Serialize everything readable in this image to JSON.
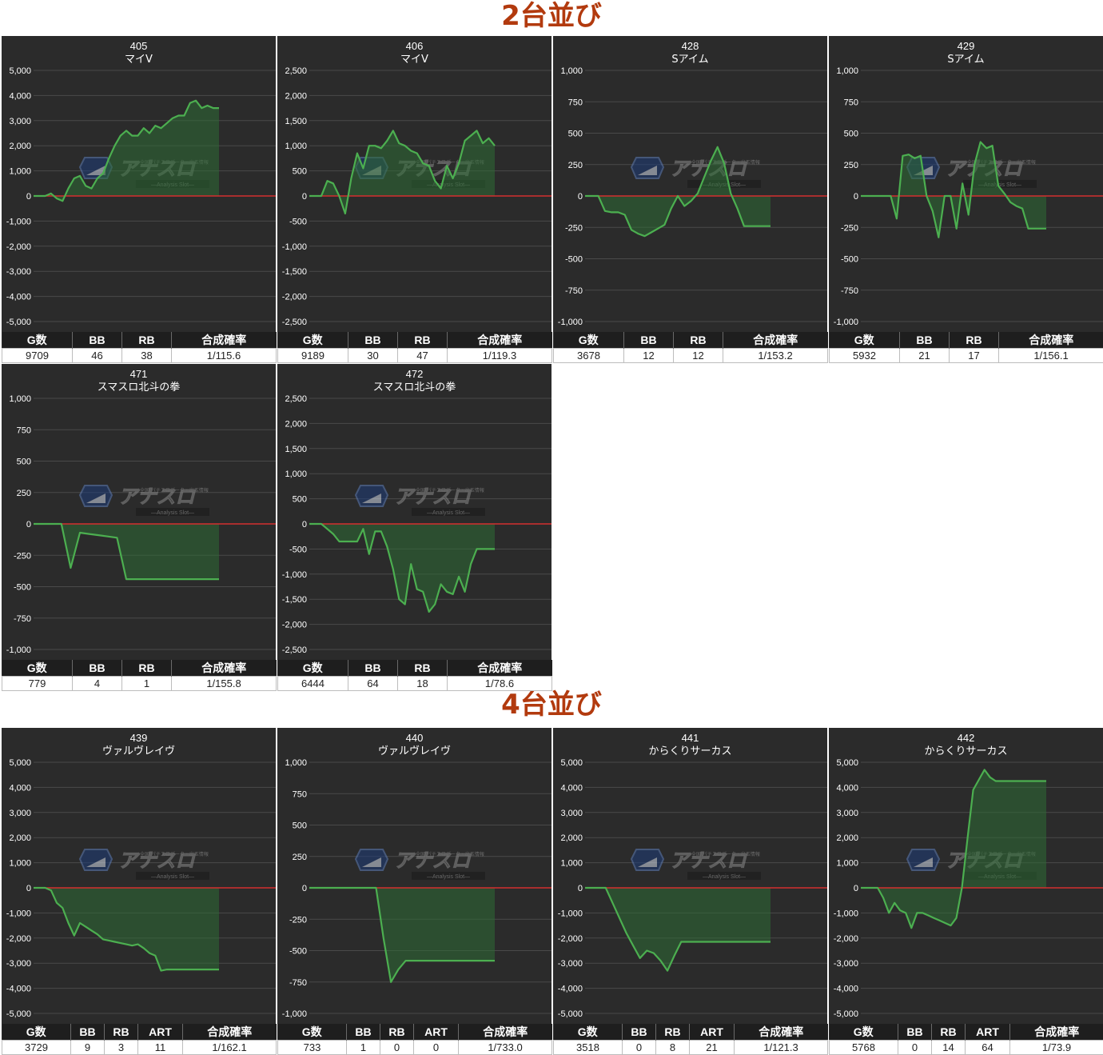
{
  "sections": [
    {
      "title": "2台並び",
      "machines": [
        0,
        1,
        2,
        3,
        4,
        5
      ]
    },
    {
      "title": "4台並び",
      "machines": [
        6,
        7,
        8,
        9
      ]
    }
  ],
  "watermark": {
    "brand": "アナスロ",
    "tagline": "—Analysis Slot—",
    "top_text": "全国 パチスロデータ・出玉情報"
  },
  "colors": {
    "panel_bg": "#2b2b2b",
    "line": "#4caf50",
    "fill": "#2e6b34",
    "zero_line": "#d32f2f",
    "grid": "#4a4a4a",
    "title": "#b23a0e"
  },
  "machines": [
    {
      "number": "405",
      "name": "マイV",
      "headers": [
        "G数",
        "BB",
        "RB",
        "合成確率"
      ],
      "values": [
        "9709",
        "46",
        "38",
        "1/115.6"
      ],
      "chart_data": {
        "type": "area",
        "ylim": [
          -5000,
          5000
        ],
        "yticks": [
          "5,000",
          "4,000",
          "3,000",
          "2,000",
          "1,000",
          "0",
          "-1,000",
          "-2,000",
          "-3,000",
          "-4,000",
          "-5,000"
        ],
        "x": [
          0,
          1,
          2,
          3,
          4,
          5,
          6,
          7,
          8,
          9,
          10,
          11,
          12,
          13,
          14,
          15,
          16,
          17,
          18,
          19,
          20,
          21,
          22,
          23,
          24,
          25,
          26,
          27,
          28,
          29,
          30,
          31,
          32
        ],
        "y": [
          0,
          0,
          0,
          100,
          -100,
          -200,
          300,
          700,
          800,
          400,
          300,
          700,
          900,
          1500,
          2000,
          2400,
          2600,
          2400,
          2400,
          2700,
          2500,
          2800,
          2700,
          2900,
          3100,
          3200,
          3200,
          3700,
          3800,
          3500,
          3600,
          3500,
          3500
        ]
      }
    },
    {
      "number": "406",
      "name": "マイV",
      "headers": [
        "G数",
        "BB",
        "RB",
        "合成確率"
      ],
      "values": [
        "9189",
        "30",
        "47",
        "1/119.3"
      ],
      "chart_data": {
        "type": "area",
        "ylim": [
          -2500,
          2500
        ],
        "yticks": [
          "2,500",
          "2,000",
          "1,500",
          "1,000",
          "500",
          "0",
          "-500",
          "-1,000",
          "-1,500",
          "-2,000",
          "-2,500"
        ],
        "x": [
          0,
          1,
          2,
          3,
          4,
          5,
          6,
          7,
          8,
          9,
          10,
          11,
          12,
          13,
          14,
          15,
          16,
          17,
          18,
          19,
          20,
          21,
          22,
          23,
          24,
          25,
          26,
          27,
          28,
          29,
          30,
          31
        ],
        "y": [
          0,
          0,
          0,
          300,
          250,
          0,
          -350,
          350,
          850,
          550,
          1000,
          1000,
          950,
          1100,
          1300,
          1050,
          1000,
          900,
          850,
          650,
          600,
          300,
          150,
          600,
          350,
          650,
          1100,
          1200,
          1300,
          1050,
          1150,
          1000
        ]
      }
    },
    {
      "number": "428",
      "name": "Sアイム",
      "headers": [
        "G数",
        "BB",
        "RB",
        "合成確率"
      ],
      "values": [
        "3678",
        "12",
        "12",
        "1/153.2"
      ],
      "chart_data": {
        "type": "area",
        "ylim": [
          -1000,
          1000
        ],
        "yticks": [
          "1,000",
          "750",
          "500",
          "250",
          "0",
          "-250",
          "-500",
          "-750",
          "-1,000"
        ],
        "x": [
          0,
          1,
          2,
          3,
          4,
          5,
          6,
          7,
          8,
          9,
          10,
          11,
          12,
          13,
          14,
          15,
          16,
          17,
          18,
          19,
          20,
          21,
          22,
          23,
          24,
          25,
          26,
          27,
          28
        ],
        "y": [
          0,
          0,
          0,
          -120,
          -130,
          -130,
          -150,
          -270,
          -300,
          -320,
          -290,
          -260,
          -230,
          -100,
          0,
          -80,
          -40,
          20,
          150,
          280,
          390,
          260,
          20,
          -100,
          -240,
          -240,
          -240,
          -240,
          -240
        ]
      }
    },
    {
      "number": "429",
      "name": "Sアイム",
      "headers": [
        "G数",
        "BB",
        "RB",
        "合成確率"
      ],
      "values": [
        "5932",
        "21",
        "17",
        "1/156.1"
      ],
      "chart_data": {
        "type": "area",
        "ylim": [
          -1000,
          1000
        ],
        "yticks": [
          "1,000",
          "750",
          "500",
          "250",
          "0",
          "-250",
          "-500",
          "-750",
          "-1,000"
        ],
        "x": [
          0,
          1,
          2,
          3,
          4,
          5,
          6,
          7,
          8,
          9,
          10,
          11,
          12,
          13,
          14,
          15,
          16,
          17,
          18,
          19,
          20,
          21,
          22,
          23,
          24,
          25,
          26,
          27,
          28,
          29,
          30,
          31
        ],
        "y": [
          0,
          0,
          0,
          0,
          0,
          0,
          -180,
          320,
          330,
          300,
          320,
          0,
          -120,
          -330,
          0,
          0,
          -260,
          100,
          -150,
          250,
          430,
          380,
          400,
          80,
          20,
          -50,
          -80,
          -100,
          -260,
          -260,
          -260,
          -260
        ]
      }
    },
    {
      "number": "471",
      "name": "スマスロ北斗の拳",
      "headers": [
        "G数",
        "BB",
        "RB",
        "合成確率"
      ],
      "values": [
        "779",
        "4",
        "1",
        "1/155.8"
      ],
      "chart_data": {
        "type": "area",
        "ylim": [
          -1000,
          1000
        ],
        "yticks": [
          "1,000",
          "750",
          "500",
          "250",
          "0",
          "-250",
          "-500",
          "-750",
          "-1,000"
        ],
        "x": [
          0,
          1,
          2,
          3,
          4,
          5,
          6,
          7,
          8,
          9,
          10,
          11,
          12,
          13,
          14,
          15,
          16,
          17,
          18,
          19,
          20
        ],
        "y": [
          0,
          0,
          0,
          0,
          -350,
          -70,
          -80,
          -90,
          -100,
          -110,
          -440,
          -440,
          -440,
          -440,
          -440,
          -440,
          -440,
          -440,
          -440,
          -440,
          -440
        ]
      }
    },
    {
      "number": "472",
      "name": "スマスロ北斗の拳",
      "headers": [
        "G数",
        "BB",
        "RB",
        "合成確率"
      ],
      "values": [
        "6444",
        "64",
        "18",
        "1/78.6"
      ],
      "chart_data": {
        "type": "area",
        "ylim": [
          -2500,
          2500
        ],
        "yticks": [
          "2,500",
          "2,000",
          "1,500",
          "1,000",
          "500",
          "0",
          "-500",
          "-1,000",
          "-1,500",
          "-2,000",
          "-2,500"
        ],
        "x": [
          0,
          1,
          2,
          3,
          4,
          5,
          6,
          7,
          8,
          9,
          10,
          11,
          12,
          13,
          14,
          15,
          16,
          17,
          18,
          19,
          20,
          21,
          22,
          23,
          24,
          25,
          26,
          27,
          28,
          29,
          30,
          31
        ],
        "y": [
          0,
          0,
          0,
          -100,
          -200,
          -350,
          -350,
          -350,
          -350,
          -100,
          -600,
          -150,
          -150,
          -450,
          -900,
          -1500,
          -1600,
          -800,
          -1300,
          -1350,
          -1750,
          -1600,
          -1200,
          -1350,
          -1400,
          -1050,
          -1350,
          -800,
          -500,
          -500,
          -500,
          -500
        ]
      }
    },
    {
      "number": "439",
      "name": "ヴァルヴレイヴ",
      "headers": [
        "G数",
        "BB",
        "RB",
        "ART",
        "合成確率"
      ],
      "values": [
        "3729",
        "9",
        "3",
        "11",
        "1/162.1"
      ],
      "chart_data": {
        "type": "area",
        "ylim": [
          -5000,
          5000
        ],
        "yticks": [
          "5,000",
          "4,000",
          "3,000",
          "2,000",
          "1,000",
          "0",
          "-1,000",
          "-2,000",
          "-3,000",
          "-4,000",
          "-5,000"
        ],
        "x": [
          0,
          1,
          2,
          3,
          4,
          5,
          6,
          7,
          8,
          9,
          10,
          11,
          12,
          13,
          14,
          15,
          16,
          17,
          18,
          19,
          20,
          21,
          22,
          23,
          24,
          25,
          26,
          27,
          28,
          29,
          30,
          31,
          32
        ],
        "y": [
          0,
          0,
          0,
          -100,
          -600,
          -800,
          -1400,
          -1900,
          -1400,
          -1550,
          -1700,
          -1850,
          -2050,
          -2100,
          -2150,
          -2200,
          -2250,
          -2300,
          -2250,
          -2400,
          -2600,
          -2700,
          -3300,
          -3250,
          -3250,
          -3250,
          -3250,
          -3250,
          -3250,
          -3250,
          -3250,
          -3250,
          -3250
        ]
      }
    },
    {
      "number": "440",
      "name": "ヴァルヴレイヴ",
      "headers": [
        "G数",
        "BB",
        "RB",
        "ART",
        "合成確率"
      ],
      "values": [
        "733",
        "1",
        "0",
        "0",
        "1/733.0"
      ],
      "chart_data": {
        "type": "area",
        "ylim": [
          -1000,
          1000
        ],
        "yticks": [
          "1,000",
          "750",
          "500",
          "250",
          "0",
          "-250",
          "-500",
          "-750",
          "-1,000"
        ],
        "x": [
          0,
          1,
          2,
          3,
          4,
          5,
          6,
          7,
          8,
          9,
          10,
          11,
          12,
          13,
          14,
          15,
          16,
          17,
          18,
          19,
          20,
          21,
          22,
          23,
          24,
          25
        ],
        "y": [
          0,
          0,
          0,
          0,
          0,
          0,
          0,
          0,
          0,
          0,
          -400,
          -750,
          -650,
          -580,
          -580,
          -580,
          -580,
          -580,
          -580,
          -580,
          -580,
          -580,
          -580,
          -580,
          -580,
          -580
        ]
      }
    },
    {
      "number": "441",
      "name": "からくりサーカス",
      "headers": [
        "G数",
        "BB",
        "RB",
        "ART",
        "合成確率"
      ],
      "values": [
        "3518",
        "0",
        "8",
        "21",
        "1/121.3"
      ],
      "chart_data": {
        "type": "area",
        "ylim": [
          -5000,
          5000
        ],
        "yticks": [
          "5,000",
          "4,000",
          "3,000",
          "2,000",
          "1,000",
          "0",
          "-1,000",
          "-2,000",
          "-3,000",
          "-4,000",
          "-5,000"
        ],
        "x": [
          0,
          1,
          2,
          3,
          4,
          5,
          6,
          7,
          8,
          9,
          10,
          11,
          12,
          13,
          14,
          15,
          16,
          17,
          18,
          19,
          20,
          21,
          22,
          23,
          24,
          25,
          26,
          27
        ],
        "y": [
          0,
          0,
          0,
          0,
          -600,
          -1200,
          -1800,
          -2300,
          -2800,
          -2500,
          -2600,
          -2900,
          -3300,
          -2700,
          -2150,
          -2150,
          -2150,
          -2150,
          -2150,
          -2150,
          -2150,
          -2150,
          -2150,
          -2150,
          -2150,
          -2150,
          -2150,
          -2150
        ]
      }
    },
    {
      "number": "442",
      "name": "からくりサーカス",
      "headers": [
        "G数",
        "BB",
        "RB",
        "ART",
        "合成確率"
      ],
      "values": [
        "5768",
        "0",
        "14",
        "64",
        "1/73.9"
      ],
      "chart_data": {
        "type": "area",
        "ylim": [
          -5000,
          5000
        ],
        "yticks": [
          "5,000",
          "4,000",
          "3,000",
          "2,000",
          "1,000",
          "0",
          "-1,000",
          "-2,000",
          "-3,000",
          "-4,000",
          "-5,000"
        ],
        "x": [
          0,
          1,
          2,
          3,
          4,
          5,
          6,
          7,
          8,
          9,
          10,
          11,
          12,
          13,
          14,
          15,
          16,
          17,
          18,
          19,
          20,
          21,
          22,
          23,
          24,
          25,
          26,
          27,
          28,
          29,
          30,
          31,
          32,
          33
        ],
        "y": [
          0,
          0,
          0,
          0,
          -400,
          -1000,
          -600,
          -900,
          -1000,
          -1600,
          -1000,
          -1000,
          -1100,
          -1200,
          -1300,
          -1400,
          -1500,
          -1200,
          0,
          2000,
          3900,
          4300,
          4700,
          4400,
          4250,
          4250,
          4250,
          4250,
          4250,
          4250,
          4250,
          4250,
          4250,
          4250
        ]
      }
    }
  ]
}
